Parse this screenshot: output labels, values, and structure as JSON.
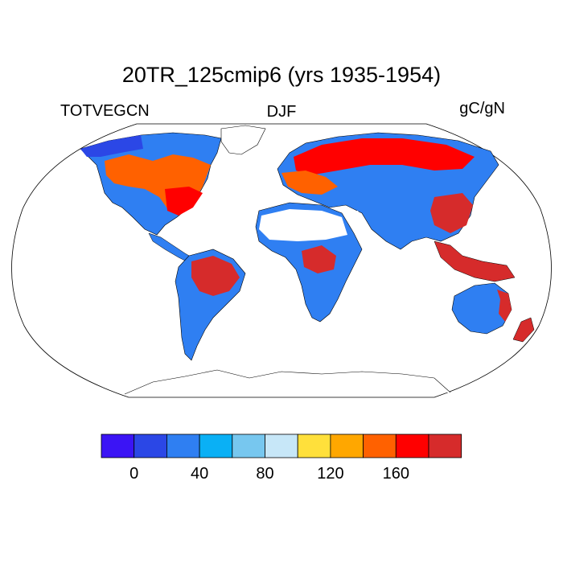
{
  "title": "20TR_125cmip6 (yrs 1935-1954)",
  "variable_label": "TOTVEGCN",
  "season_label": "DJF",
  "units_label": "gC/gN",
  "colorbar": {
    "colors": [
      "#3b14f5",
      "#2b47e6",
      "#2f7ff2",
      "#0ab0f5",
      "#77c7ef",
      "#c7e7f8",
      "#ffe03b",
      "#ffa700",
      "#ff6100",
      "#ff0000",
      "#d62b2b"
    ],
    "tick_labels": [
      "0",
      "40",
      "80",
      "120",
      "160"
    ],
    "tick_values": [
      0,
      40,
      80,
      120,
      160
    ],
    "boundaries": [
      -20,
      0,
      20,
      40,
      60,
      80,
      100,
      120,
      140,
      160,
      180,
      200
    ]
  },
  "map": {
    "projection": "Robinson",
    "land_colors": {
      "cold_low": "#2b47e6",
      "low": "#2f7ff2",
      "mid": "#77c7ef",
      "high": "#ff6100",
      "very_high": "#ff0000",
      "tropical": "#d62b2b",
      "desert": "#ffffff"
    }
  }
}
